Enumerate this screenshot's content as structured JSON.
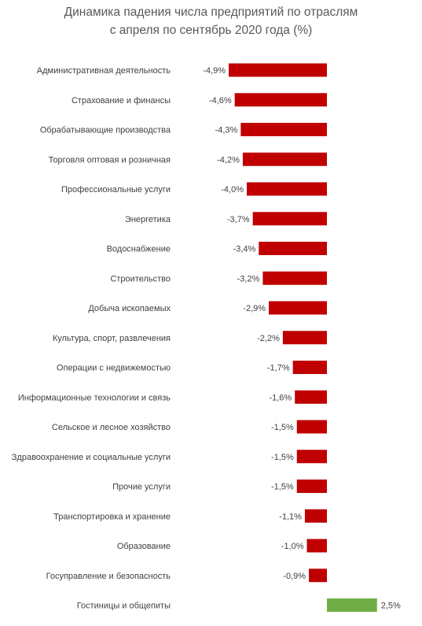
{
  "chart_data": {
    "type": "bar",
    "orientation": "horizontal",
    "title": "Динамика падения числа предприятий по отраслям",
    "subtitle": "с апреля по сентябрь 2020 года (%)",
    "categories": [
      "Административная деятельность",
      "Страхование и финансы",
      "Обрабатывающие производства",
      "Торговля оптовая и розничная",
      "Профессиональные услуги",
      "Энергетика",
      "Водоснабжение",
      "Строительство",
      "Добыча ископаемых",
      "Культура, спорт, развлечения",
      "Операции с недвижемостью",
      "Информационные технологии и связь",
      "Сельское и лесное хозяйство",
      "Здравоохранение и социальные услуги",
      "Прочие услуги",
      "Транспортировка и хранение",
      "Образование",
      "Госуправление и безопасность",
      "Гостиницы и общепиты"
    ],
    "values": [
      -4.9,
      -4.6,
      -4.3,
      -4.2,
      -4.0,
      -3.7,
      -3.4,
      -3.2,
      -2.9,
      -2.2,
      -1.7,
      -1.6,
      -1.5,
      -1.5,
      -1.5,
      -1.1,
      -1.0,
      -0.9,
      2.5
    ],
    "labels": [
      "-4,9%",
      "-4,6%",
      "-4,3%",
      "-4,2%",
      "-4,0%",
      "-3,7%",
      "-3,4%",
      "-3,2%",
      "-2,9%",
      "-2,2%",
      "-1,7%",
      "-1,6%",
      "-1,5%",
      "-1,5%",
      "-1,5%",
      "-1,1%",
      "-1,0%",
      "-0,9%",
      "2,5%"
    ],
    "xlabel": "",
    "ylabel": "",
    "grid": false,
    "legend": "none",
    "colors": {
      "negative": "#c00000",
      "positive": "#70ad47",
      "text": "#404040",
      "title": "#595959"
    }
  }
}
